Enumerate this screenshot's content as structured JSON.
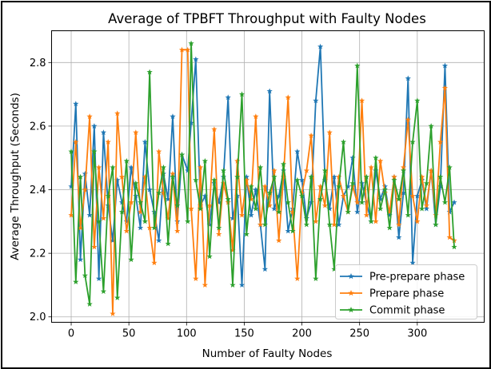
{
  "chart_data": {
    "type": "line",
    "title": "Average of TPBFT Throughput with Faulty Nodes",
    "xlabel": "Number of Faulty Nodes",
    "ylabel": "Average Throughput (Seconds)",
    "xlim": [
      -17,
      358
    ],
    "ylim": [
      1.983,
      2.9
    ],
    "xticks": [
      0,
      50,
      100,
      150,
      200,
      250,
      300
    ],
    "xtick_labels": [
      "0",
      "50",
      "100",
      "150",
      "200",
      "250",
      "300"
    ],
    "yticks": [
      2.0,
      2.2,
      2.4,
      2.6,
      2.8
    ],
    "ytick_labels": [
      "2.0",
      "2.2",
      "2.4",
      "2.6",
      "2.8"
    ],
    "grid": true,
    "legend_position": "lower-right",
    "marker": "star",
    "x": [
      0,
      4,
      8,
      12,
      16,
      20,
      24,
      28,
      32,
      36,
      40,
      44,
      48,
      52,
      56,
      60,
      64,
      68,
      72,
      76,
      80,
      84,
      88,
      92,
      96,
      101,
      104,
      108,
      112,
      116,
      120,
      124,
      128,
      132,
      136,
      140,
      144,
      148,
      152,
      156,
      160,
      164,
      168,
      172,
      176,
      180,
      184,
      188,
      192,
      196,
      200,
      204,
      208,
      212,
      216,
      220,
      224,
      228,
      232,
      236,
      240,
      244,
      248,
      252,
      256,
      260,
      264,
      268,
      272,
      276,
      280,
      284,
      288,
      292,
      296,
      300,
      304,
      308,
      312,
      316,
      320,
      324,
      328,
      332
    ],
    "series": [
      {
        "name": "Pre-prepare phase",
        "color": "#1f77b4",
        "values": [
          2.41,
          2.67,
          2.18,
          2.45,
          2.32,
          2.6,
          2.12,
          2.58,
          2.35,
          2.24,
          2.43,
          2.36,
          2.3,
          2.47,
          2.38,
          2.28,
          2.55,
          2.4,
          2.33,
          2.24,
          2.45,
          2.37,
          2.63,
          2.3,
          2.51,
          2.46,
          2.61,
          2.81,
          2.35,
          2.38,
          2.29,
          2.42,
          2.36,
          2.44,
          2.69,
          2.31,
          2.38,
          2.1,
          2.44,
          2.32,
          2.4,
          2.29,
          2.15,
          2.71,
          2.34,
          2.38,
          2.46,
          2.27,
          2.34,
          2.52,
          2.43,
          2.31,
          2.36,
          2.68,
          2.85,
          2.43,
          2.34,
          2.44,
          2.29,
          2.38,
          2.41,
          2.5,
          2.33,
          2.42,
          2.36,
          2.3,
          2.46,
          2.37,
          2.41,
          2.32,
          2.44,
          2.25,
          2.39,
          2.75,
          2.17,
          2.38,
          2.43,
          2.34,
          2.46,
          2.29,
          2.41,
          2.79,
          2.33,
          2.36
        ]
      },
      {
        "name": "Prepare phase",
        "color": "#ff7f0e",
        "values": [
          2.32,
          2.55,
          2.28,
          2.4,
          2.63,
          2.22,
          2.47,
          2.31,
          2.55,
          2.01,
          2.64,
          2.44,
          2.27,
          2.36,
          2.58,
          2.33,
          2.44,
          2.28,
          2.17,
          2.52,
          2.39,
          2.31,
          2.45,
          2.27,
          2.84,
          2.84,
          2.34,
          2.12,
          2.47,
          2.1,
          2.35,
          2.59,
          2.26,
          2.42,
          2.36,
          2.21,
          2.49,
          2.32,
          2.43,
          2.37,
          2.63,
          2.29,
          2.41,
          2.35,
          2.46,
          2.24,
          2.44,
          2.69,
          2.33,
          2.12,
          2.39,
          2.46,
          2.57,
          2.3,
          2.41,
          2.35,
          2.58,
          2.29,
          2.44,
          2.38,
          2.33,
          2.41,
          2.36,
          2.68,
          2.32,
          2.47,
          2.3,
          2.49,
          2.39,
          2.33,
          2.44,
          2.29,
          2.47,
          2.62,
          2.38,
          2.3,
          2.44,
          2.35,
          2.46,
          2.32,
          2.55,
          2.72,
          2.25,
          2.24
        ]
      },
      {
        "name": "Commit phase",
        "color": "#2ca02c",
        "values": [
          2.52,
          2.11,
          2.44,
          2.13,
          2.04,
          2.52,
          2.3,
          2.08,
          2.38,
          2.47,
          2.06,
          2.33,
          2.49,
          2.18,
          2.42,
          2.36,
          2.3,
          2.77,
          2.28,
          2.39,
          2.47,
          2.23,
          2.44,
          2.35,
          2.51,
          2.3,
          2.86,
          2.43,
          2.34,
          2.49,
          2.19,
          2.43,
          2.28,
          2.46,
          2.37,
          2.1,
          2.44,
          2.7,
          2.26,
          2.41,
          2.34,
          2.47,
          2.29,
          2.39,
          2.44,
          2.33,
          2.48,
          2.36,
          2.27,
          2.43,
          2.38,
          2.29,
          2.44,
          2.12,
          2.37,
          2.46,
          2.29,
          2.15,
          2.41,
          2.55,
          2.33,
          2.42,
          2.79,
          2.36,
          2.44,
          2.3,
          2.5,
          2.34,
          2.4,
          2.28,
          2.43,
          2.37,
          2.46,
          2.32,
          2.55,
          2.68,
          2.34,
          2.42,
          2.6,
          2.29,
          2.44,
          2.36,
          2.47,
          2.22
        ]
      }
    ]
  }
}
